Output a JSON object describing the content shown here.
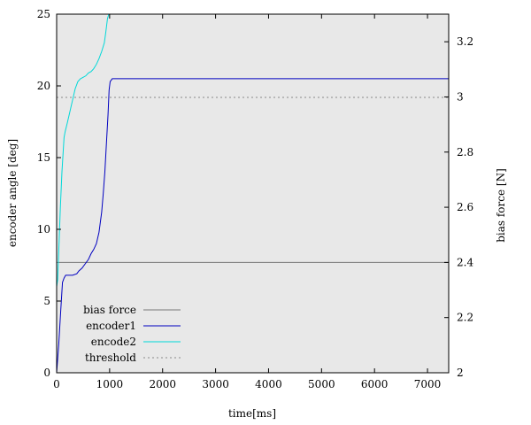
{
  "chart_data": {
    "type": "line",
    "title": "",
    "xlabel": "time[ms]",
    "ylabel": "encoder angle [deg]",
    "y2label": "bias force [N]",
    "xlim": [
      0,
      7400
    ],
    "ylim": [
      0,
      25
    ],
    "y2lim": [
      2.0,
      3.3
    ],
    "xticks": [
      0,
      1000,
      2000,
      3000,
      4000,
      5000,
      6000,
      7000
    ],
    "yticks": [
      0,
      5,
      10,
      15,
      20,
      25
    ],
    "y2ticks": [
      2,
      2.2,
      2.4,
      2.6,
      2.8,
      3,
      3.2
    ],
    "background": "#e8e8e8",
    "legend_position": "bottom-left",
    "series": [
      {
        "name": "bias force",
        "axis": "y2",
        "color": "#777777",
        "dash": "solid",
        "x": [
          0,
          7400
        ],
        "y": [
          2.4,
          2.4
        ]
      },
      {
        "name": "encoder1",
        "axis": "y",
        "color": "#0000c0",
        "dash": "solid",
        "x": [
          0,
          40,
          80,
          110,
          140,
          170,
          220,
          300,
          380,
          420,
          480,
          540,
          600,
          650,
          700,
          750,
          800,
          850,
          880,
          910,
          940,
          970,
          990,
          1010,
          1050,
          1200,
          2000,
          3000,
          4000,
          5000,
          6000,
          7000,
          7400
        ],
        "y": [
          0,
          2,
          4.5,
          6.3,
          6.6,
          6.8,
          6.8,
          6.8,
          6.9,
          7.1,
          7.3,
          7.6,
          7.9,
          8.3,
          8.6,
          9.0,
          9.8,
          11.2,
          12.5,
          14.0,
          16.0,
          18.0,
          19.7,
          20.3,
          20.5,
          20.5,
          20.5,
          20.5,
          20.5,
          20.5,
          20.5,
          20.5,
          20.5
        ]
      },
      {
        "name": "encode2",
        "axis": "y",
        "color": "#00d8d8",
        "dash": "solid",
        "x": [
          0,
          20,
          40,
          70,
          100,
          140,
          160,
          200,
          250,
          300,
          350,
          400,
          450,
          500,
          550,
          600,
          650,
          700,
          750,
          800,
          850,
          900,
          930,
          960,
          985
        ],
        "y": [
          6,
          6.5,
          8.5,
          11.5,
          14,
          16.4,
          16.8,
          17.4,
          18.2,
          19.0,
          19.8,
          20.3,
          20.5,
          20.6,
          20.7,
          20.9,
          21.0,
          21.2,
          21.5,
          21.9,
          22.4,
          23.0,
          23.8,
          24.7,
          25
        ]
      },
      {
        "name": "threshold",
        "axis": "y",
        "color": "#888888",
        "dash": "dotted",
        "x": [
          0,
          7400
        ],
        "y": [
          19.2,
          19.2
        ]
      }
    ]
  }
}
